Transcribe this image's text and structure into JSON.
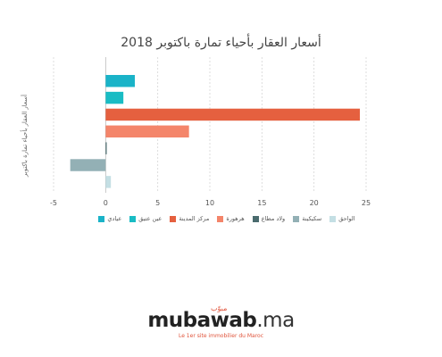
{
  "chart_data": {
    "type": "bar",
    "orientation": "horizontal",
    "title": "أسعار العقار بأحياء تمارة باكتوبر 2018",
    "ylabel": "أسعار العقار بأحياء تمارة باكتوبر",
    "xlim": [
      -5,
      25
    ],
    "xticks": [
      "-5",
      "0",
      "5",
      "10",
      "15",
      "20",
      "25"
    ],
    "grid": true,
    "legend_position": "bottom",
    "series": [
      {
        "name": "عيادي",
        "value": 2.8,
        "color": "#1ab3c8"
      },
      {
        "name": "عين عتيق",
        "value": 1.7,
        "color": "#19bcc4"
      },
      {
        "name": "مركز المدينة",
        "value": 24.4,
        "color": "#e5603f"
      },
      {
        "name": "هرهورة",
        "value": 8.0,
        "color": "#f4856a"
      },
      {
        "name": "ولاد مطاع",
        "value": 0.1,
        "color": "#4a6b6e"
      },
      {
        "name": "سكيكينة",
        "value": -3.4,
        "color": "#93b0b5"
      },
      {
        "name": "الواحق",
        "value": 0.5,
        "color": "#c4dfe4"
      }
    ]
  },
  "brand": {
    "name": "mubawab",
    "tld": ".ma",
    "arabic": "مبوّب",
    "tagline": "Le 1er site immobilier du Maroc"
  }
}
